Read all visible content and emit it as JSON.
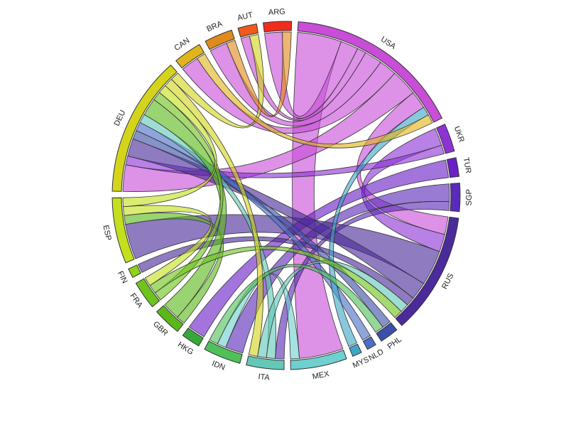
{
  "chart_data": {
    "type": "chord",
    "title": "",
    "nodes": [
      {
        "name": "USA",
        "color": "#c84ed8"
      },
      {
        "name": "UKR",
        "color": "#8e32d6"
      },
      {
        "name": "TUR",
        "color": "#6b1fc6"
      },
      {
        "name": "SGP",
        "color": "#5a2ab8"
      },
      {
        "name": "RUS",
        "color": "#4b2a9a"
      },
      {
        "name": "PHL",
        "color": "#3d4fa8"
      },
      {
        "name": "NLD",
        "color": "#4a6fc8"
      },
      {
        "name": "MYS",
        "color": "#3fa6c8"
      },
      {
        "name": "MEX",
        "color": "#6fd0d0"
      },
      {
        "name": "ITA",
        "color": "#63c8b8"
      },
      {
        "name": "IDN",
        "color": "#4fc05a"
      },
      {
        "name": "HKG",
        "color": "#36a83a"
      },
      {
        "name": "GBR",
        "color": "#5cb81a"
      },
      {
        "name": "FRA",
        "color": "#6ec41c"
      },
      {
        "name": "FIN",
        "color": "#8fd21c"
      },
      {
        "name": "ESP",
        "color": "#c4e01c"
      },
      {
        "name": "DEU",
        "color": "#d4d41c"
      },
      {
        "name": "CAN",
        "color": "#e0b41c"
      },
      {
        "name": "BRA",
        "color": "#e08a1c"
      },
      {
        "name": "AUT",
        "color": "#f05a1c"
      },
      {
        "name": "ARG",
        "color": "#f02c1c"
      }
    ],
    "flows": [
      {
        "source": "USA",
        "target": "MEX",
        "value": 5
      },
      {
        "source": "USA",
        "target": "ARG",
        "value": 2
      },
      {
        "source": "USA",
        "target": "AUT",
        "value": 1
      },
      {
        "source": "USA",
        "target": "BRA",
        "value": 2
      },
      {
        "source": "USA",
        "target": "CAN",
        "value": 2
      },
      {
        "source": "USA",
        "target": "DEU",
        "value": 3
      },
      {
        "source": "USA",
        "target": "RUS",
        "value": 2
      },
      {
        "source": "UKR",
        "target": "RUS",
        "value": 2
      },
      {
        "source": "UKR",
        "target": "DEU",
        "value": 1
      },
      {
        "source": "TUR",
        "target": "HKG",
        "value": 2
      },
      {
        "source": "SGP",
        "target": "IDN",
        "value": 2
      },
      {
        "source": "SGP",
        "target": "ITA",
        "value": 1
      },
      {
        "source": "RUS",
        "target": "ESP",
        "value": 4
      },
      {
        "source": "RUS",
        "target": "DEU",
        "value": 2
      },
      {
        "source": "RUS",
        "target": "FIN",
        "value": 1
      },
      {
        "source": "PHL",
        "target": "DEU",
        "value": 1
      },
      {
        "source": "NLD",
        "target": "DEU",
        "value": 1
      },
      {
        "source": "MYS",
        "target": "USA",
        "value": 1
      },
      {
        "source": "MEX",
        "target": "IDN",
        "value": 1
      },
      {
        "source": "ITA",
        "target": "DEU",
        "value": 1
      },
      {
        "source": "ITA",
        "target": "RUS",
        "value": 1
      },
      {
        "source": "IDN",
        "target": "PHL",
        "value": 1
      },
      {
        "source": "GBR",
        "target": "ESP",
        "value": 1
      },
      {
        "source": "GBR",
        "target": "DEU",
        "value": 2
      },
      {
        "source": "FRA",
        "target": "DEU",
        "value": 1
      },
      {
        "source": "FRA",
        "target": "RUS",
        "value": 1
      },
      {
        "source": "ESP",
        "target": "FRA",
        "value": 1
      },
      {
        "source": "ESP",
        "target": "DEU",
        "value": 1
      },
      {
        "source": "DEU",
        "target": "ITA",
        "value": 1
      },
      {
        "source": "DEU",
        "target": "AUT",
        "value": 1
      },
      {
        "source": "CAN",
        "target": "USA",
        "value": 1
      },
      {
        "source": "BRA",
        "target": "ARG",
        "value": 1
      }
    ]
  }
}
